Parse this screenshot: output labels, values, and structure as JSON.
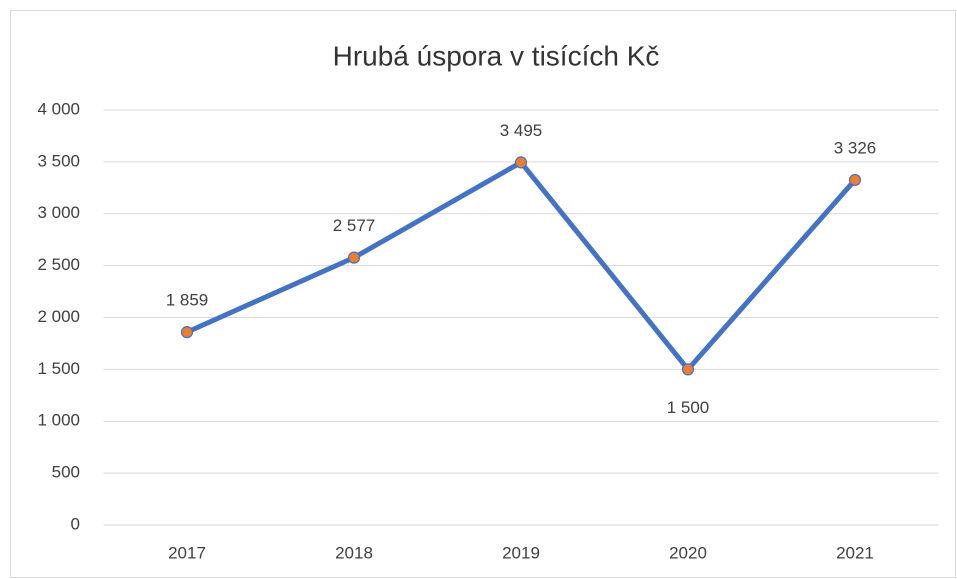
{
  "chart_data": {
    "type": "line",
    "title": "Hrubá úspora v tisících Kč",
    "categories": [
      "2017",
      "2018",
      "2019",
      "2020",
      "2021"
    ],
    "series": [
      {
        "name": "Hrubá úspora",
        "color": "#4472c4",
        "marker_color": "#ed7d31",
        "values": [
          1859,
          2577,
          3495,
          1500,
          3326
        ],
        "value_labels": [
          "1 859",
          "2 577",
          "3 495",
          "1 500",
          "3 326"
        ]
      }
    ],
    "ylim": [
      0,
      4000
    ],
    "yticks": [
      0,
      500,
      {
        "value": 1000,
        "label": "1 000"
      },
      {
        "value": 1500,
        "label": "1 500"
      },
      {
        "value": 2000,
        "label": "2 000"
      },
      {
        "value": 2500,
        "label": "2 500"
      },
      {
        "value": 3000,
        "label": "3 000"
      },
      {
        "value": 3500,
        "label": "3 500"
      },
      {
        "value": 4000,
        "label": "4 000"
      }
    ],
    "grid": true
  }
}
